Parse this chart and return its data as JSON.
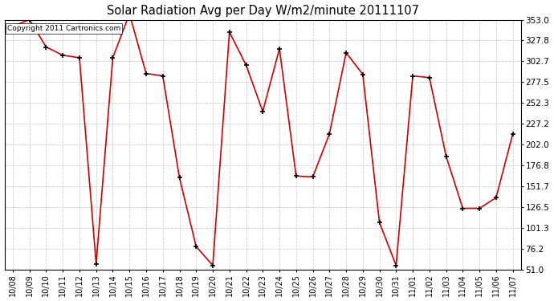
{
  "title": "Solar Radiation Avg per Day W/m2/minute 20111107",
  "copyright": "Copyright 2011 Cartronics.com",
  "line_color": "#cc0000",
  "marker_color": "#000000",
  "background_color": "#ffffff",
  "grid_color": "#bbbbbb",
  "ylim": [
    51.0,
    353.0
  ],
  "yticks": [
    51.0,
    76.2,
    101.3,
    126.5,
    151.7,
    176.8,
    202.0,
    227.2,
    252.3,
    277.5,
    302.7,
    327.8,
    353.0
  ],
  "dates": [
    "10/08",
    "10/09",
    "10/10",
    "10/11",
    "10/12",
    "10/13",
    "10/14",
    "10/15",
    "10/16",
    "10/17",
    "10/18",
    "10/19",
    "10/20",
    "10/21",
    "10/22",
    "10/23",
    "10/24",
    "10/25",
    "10/26",
    "10/27",
    "10/28",
    "10/29",
    "10/30",
    "10/31",
    "11/01",
    "11/02",
    "11/03",
    "11/04",
    "11/05",
    "11/06",
    "11/07"
  ],
  "values": [
    345,
    353,
    320,
    310,
    307,
    58,
    307,
    360,
    288,
    285,
    162,
    79,
    56,
    338,
    298,
    242,
    318,
    164,
    163,
    215,
    313,
    287,
    108,
    56,
    285,
    283,
    188,
    125,
    125,
    138,
    215
  ]
}
